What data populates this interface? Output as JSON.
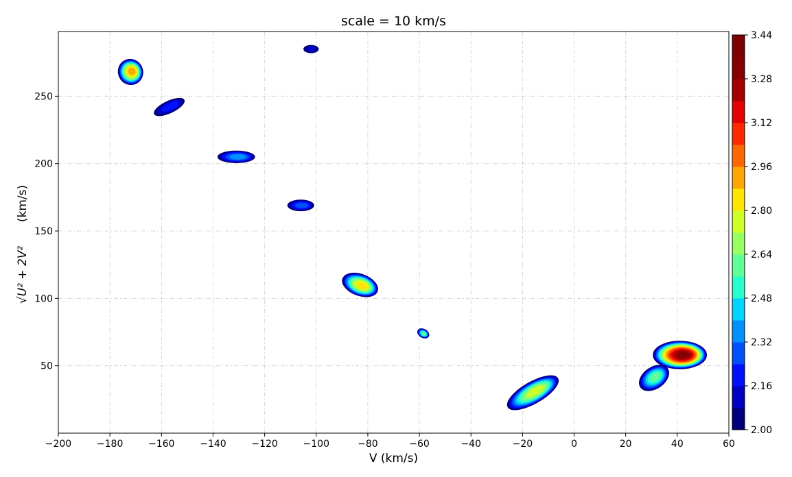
{
  "chart_data": {
    "type": "contour",
    "title": "scale = 10 km/s",
    "xlabel": "V (km/s)",
    "ylabel": "(km/s)",
    "xlim": [
      -200,
      60
    ],
    "ylim": [
      0,
      298
    ],
    "x_ticks": [
      -200,
      -180,
      -160,
      -140,
      -120,
      -100,
      -80,
      -60,
      -40,
      -20,
      0,
      20,
      40,
      60
    ],
    "x_tick_labels": [
      "−200",
      "−180",
      "−160",
      "−140",
      "−120",
      "−100",
      "−80",
      "−60",
      "−40",
      "−20",
      "0",
      "20",
      "40",
      "60"
    ],
    "y_ticks": [
      50,
      100,
      150,
      200,
      250
    ],
    "y_tick_labels": [
      "50",
      "100",
      "150",
      "200",
      "250"
    ],
    "grid": true,
    "colorbar": {
      "range": [
        2.0,
        3.44
      ],
      "levels": 18,
      "tick_values": [
        2.0,
        2.16,
        2.32,
        2.48,
        2.64,
        2.8,
        2.96,
        3.12,
        3.28,
        3.44
      ],
      "tick_labels": [
        "2.00",
        "2.16",
        "2.32",
        "2.48",
        "2.64",
        "2.80",
        "2.96",
        "3.12",
        "3.28",
        "3.44"
      ],
      "colors": [
        "#00007f",
        "#0000c4",
        "#0010ff",
        "#0050ff",
        "#0090ff",
        "#00d4ff",
        "#29ffce",
        "#60ff97",
        "#97ff60",
        "#ceff29",
        "#ffe500",
        "#ffa700",
        "#ff6800",
        "#ff2900",
        "#e40000",
        "#a50000",
        "#850000",
        "#7f0000"
      ]
    },
    "clumps": [
      {
        "v": -172,
        "r": 268,
        "rv": 3,
        "rr": 6,
        "angle": -25,
        "peak": 2.92
      },
      {
        "v": -157,
        "r": 242,
        "rv": 4,
        "rr": 2.8,
        "angle": -25,
        "peak": 2.2
      },
      {
        "v": -131,
        "r": 205,
        "rv": 4.5,
        "rr": 2.8,
        "angle": 0,
        "peak": 2.34
      },
      {
        "v": -106,
        "r": 169,
        "rv": 3.2,
        "rr": 2.6,
        "angle": 0,
        "peak": 2.24
      },
      {
        "v": -102,
        "r": 285,
        "rv": 1.8,
        "rr": 1.8,
        "angle": 0,
        "peak": 2.14
      },
      {
        "v": -83,
        "r": 110,
        "rv": 4.5,
        "rr": 5,
        "angle": 20,
        "peak": 2.85
      },
      {
        "v": -58.5,
        "r": 74,
        "rv": 1.5,
        "rr": 2,
        "angle": 30,
        "peak": 2.6
      },
      {
        "v": -16,
        "r": 30,
        "rv": 7,
        "rr": 5,
        "angle": -30,
        "peak": 2.78
      },
      {
        "v": 41,
        "r": 58,
        "rv": 6.5,
        "rr": 6.5,
        "angle": 0,
        "peak": 3.35
      },
      {
        "v": 31,
        "r": 41,
        "rv": 4,
        "rr": 5,
        "angle": -35,
        "peak": 2.62
      }
    ]
  }
}
